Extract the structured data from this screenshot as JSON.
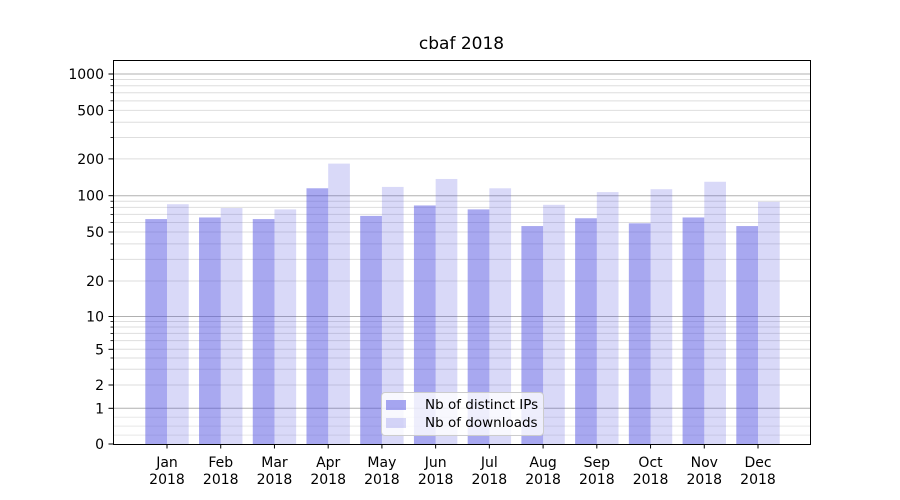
{
  "title": "cbaf 2018",
  "colors": {
    "bar_base": "#5151e1",
    "grid_major": "#b0b0b0",
    "grid_minor": "#dedede",
    "grid_sub1": "#e8e8e8",
    "axis": "#000000",
    "legend_border": "#cccccc"
  },
  "chart_data": {
    "type": "bar",
    "title": "cbaf 2018",
    "categories": [
      "Jan 2018",
      "Feb 2018",
      "Mar 2018",
      "Apr 2018",
      "May 2018",
      "Jun 2018",
      "Jul 2018",
      "Aug 2018",
      "Sep 2018",
      "Oct 2018",
      "Nov 2018",
      "Dec 2018"
    ],
    "series": [
      {
        "name": "Nb of distinct IPs",
        "color": "#5151e1",
        "alpha": 0.5,
        "values": [
          64,
          66,
          64,
          115,
          68,
          83,
          77,
          56,
          65,
          59,
          66,
          56
        ]
      },
      {
        "name": "Nb of downloads",
        "color": "#5151e1",
        "alpha": 0.22,
        "values": [
          85,
          79,
          77,
          183,
          118,
          137,
          115,
          84,
          107,
          113,
          130,
          89
        ]
      }
    ],
    "xlabel": "",
    "ylabel": "",
    "yscale": "symlog",
    "yticks": [
      0,
      1,
      2,
      5,
      10,
      20,
      50,
      100,
      200,
      500,
      1000
    ],
    "ylim": [
      0,
      1300
    ],
    "grid": true,
    "legend_position": "lower center"
  }
}
